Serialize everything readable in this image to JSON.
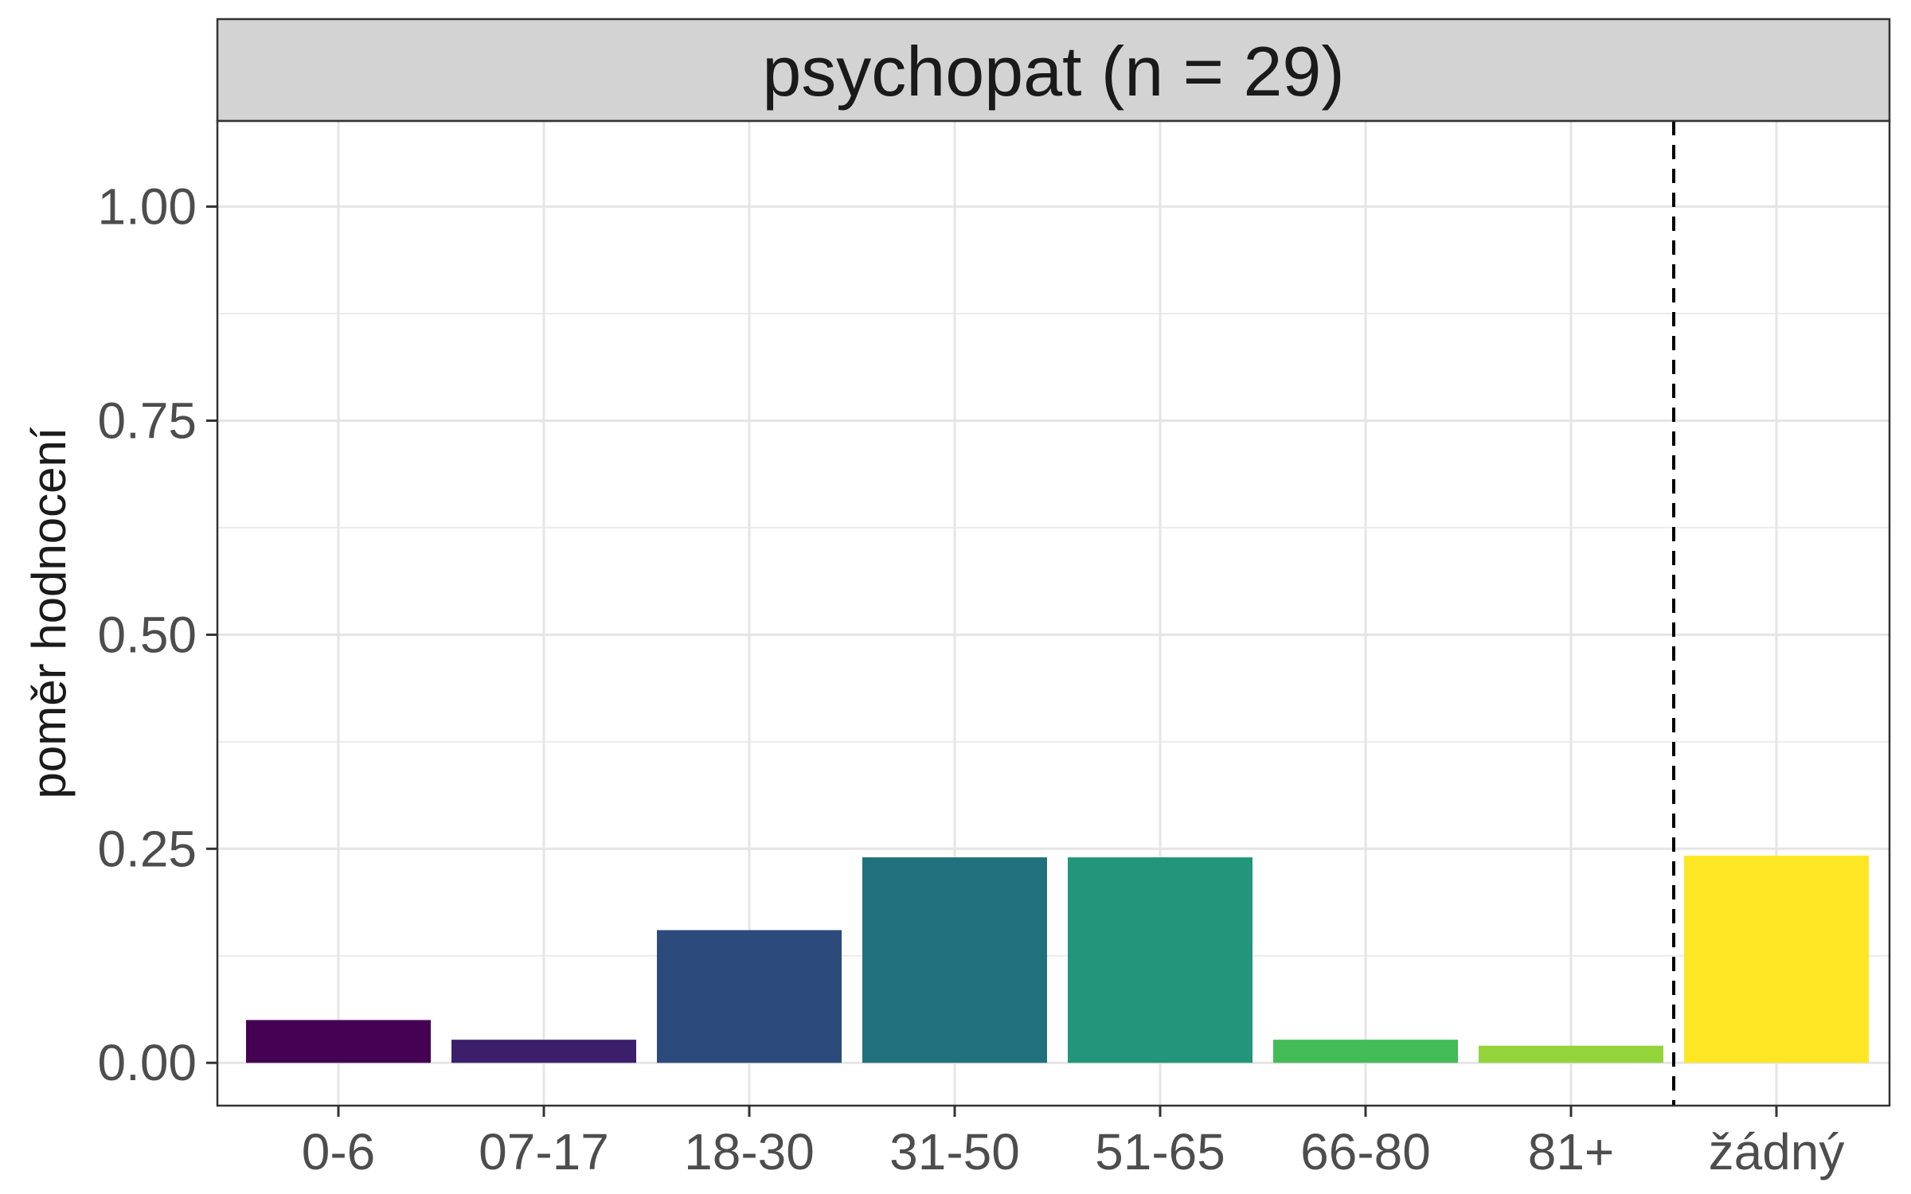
{
  "chart_data": {
    "type": "bar",
    "title": "psychopat (n = 29)",
    "xlabel": "",
    "ylabel": "poměr hodnocení",
    "categories": [
      "0-6",
      "07-17",
      "18-30",
      "31-50",
      "51-65",
      "66-80",
      "81+",
      "žádný"
    ],
    "values": [
      0.05,
      0.027,
      0.155,
      0.24,
      0.24,
      0.027,
      0.02,
      0.242
    ],
    "colors": [
      "#440154",
      "#3B1F6B",
      "#2C4A7B",
      "#21707D",
      "#22957A",
      "#43BB56",
      "#93D43A",
      "#FDE725"
    ],
    "ylim": [
      -0.05,
      1.1
    ],
    "yticks": [
      0,
      0.25,
      0.5,
      0.75,
      1.0
    ],
    "ytick_labels": [
      "0.00",
      "0.25",
      "0.50",
      "0.75",
      "1.00"
    ],
    "vline": {
      "between": [
        "81+",
        "žádný"
      ],
      "style": "dashed"
    },
    "grid": true,
    "legend": "none"
  }
}
